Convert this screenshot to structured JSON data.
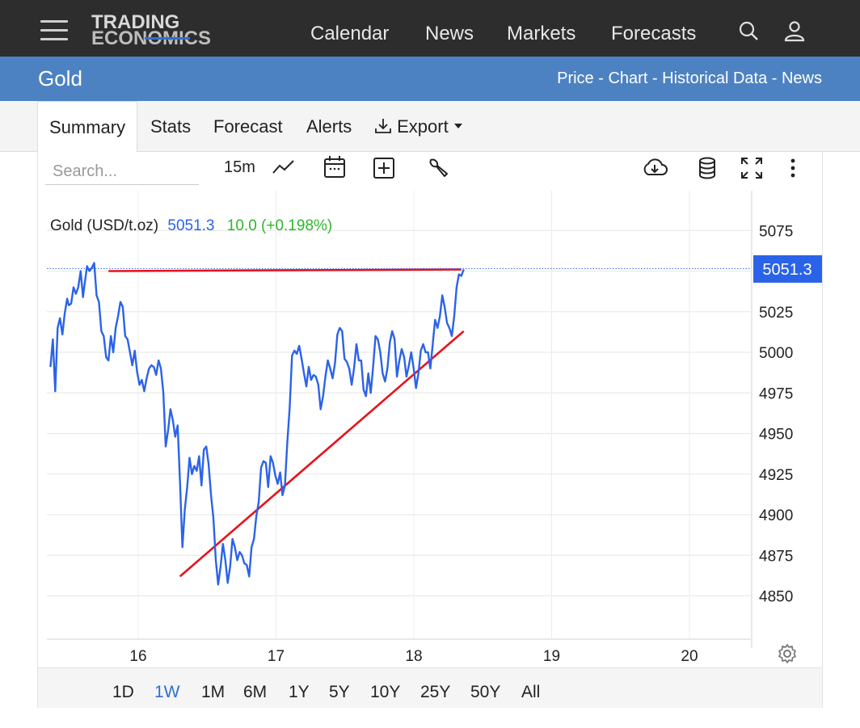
{
  "header": {
    "logo_line1": "TRADING",
    "logo_line2": "ECONOMICS",
    "nav": [
      "Calendar",
      "News",
      "Markets",
      "Forecasts"
    ],
    "icons": [
      "menu-icon",
      "search-icon",
      "user-icon"
    ]
  },
  "subheader": {
    "title": "Gold",
    "links": [
      "Price",
      "Chart",
      "Historical Data",
      "News"
    ],
    "separator": " - "
  },
  "tabs": {
    "summary": "Summary",
    "stats": "Stats",
    "forecast": "Forecast",
    "alerts": "Alerts",
    "export": "Export",
    "active": "Summary"
  },
  "toolbar": {
    "search_placeholder": "Search...",
    "interval": "15m",
    "icons": [
      "line-chart-icon",
      "calendar-icon",
      "add-box-icon",
      "wrench-icon",
      "cloud-download-icon",
      "database-icon",
      "fullscreen-icon",
      "more-vert-icon",
      "gear-icon"
    ]
  },
  "ranges": {
    "items": [
      "1D",
      "1W",
      "1M",
      "6M",
      "1Y",
      "5Y",
      "10Y",
      "25Y",
      "50Y",
      "All"
    ],
    "active": "1W"
  },
  "colors": {
    "line": "#2b63e8",
    "trend": "#e8111b",
    "badge": "#2b63e8",
    "change": "#2fb52a",
    "price": "#2b63e8"
  },
  "chart_data": {
    "type": "line",
    "legend": {
      "name": "Gold (USD/t.oz)",
      "price": "5051.3",
      "change": "10.0 (+0.198%)"
    },
    "last_value_label": "5051.3",
    "last_value": 5051.3,
    "ylim": [
      4825,
      5100
    ],
    "y_ticks": [
      4850,
      4875,
      4900,
      4925,
      4950,
      4975,
      5000,
      5025,
      5075
    ],
    "y_tick_labels": [
      "4850",
      "4875",
      "4900",
      "4925",
      "4950",
      "4975",
      "5000",
      "5025",
      "5075"
    ],
    "x_range": [
      15.3633,
      20.4286
    ],
    "x_ticks": [
      16,
      17,
      18,
      19,
      20
    ],
    "x_tick_labels": [
      "16",
      "17",
      "18",
      "19",
      "20"
    ],
    "grid": true,
    "series": [
      {
        "values": [
          [
            15.3633,
            4991
          ],
          [
            15.3806,
            5008
          ],
          [
            15.3979,
            4976
          ],
          [
            15.4152,
            5015
          ],
          [
            15.4325,
            5021
          ],
          [
            15.4498,
            5011
          ],
          [
            15.4671,
            5024
          ],
          [
            15.4844,
            5033
          ],
          [
            15.4959,
            5029
          ],
          [
            15.5132,
            5030
          ],
          [
            15.5305,
            5040
          ],
          [
            15.5478,
            5036
          ],
          [
            15.5651,
            5040
          ],
          [
            15.5824,
            5050
          ],
          [
            15.5997,
            5034
          ],
          [
            15.6113,
            5042
          ],
          [
            15.6286,
            5053
          ],
          [
            15.6459,
            5050
          ],
          [
            15.6632,
            5052
          ],
          [
            15.6805,
            5055
          ],
          [
            15.6978,
            5035
          ],
          [
            15.7151,
            5031
          ],
          [
            15.7324,
            5013
          ],
          [
            15.7497,
            5010
          ],
          [
            15.767,
            4997
          ],
          [
            15.7843,
            4995
          ],
          [
            15.8016,
            5010
          ],
          [
            15.8189,
            5000
          ],
          [
            15.8362,
            5015
          ],
          [
            15.8535,
            5022
          ],
          [
            15.8708,
            5031
          ],
          [
            15.8881,
            5028
          ],
          [
            15.9054,
            5010
          ],
          [
            15.9227,
            5008
          ],
          [
            15.94,
            5000
          ],
          [
            15.9573,
            4992
          ],
          [
            15.9746,
            5001
          ],
          [
            15.9919,
            4988
          ],
          [
            16.0092,
            4980
          ],
          [
            16.0265,
            4983
          ],
          [
            16.0438,
            4976
          ],
          [
            16.0611,
            4984
          ],
          [
            16.0784,
            4990
          ],
          [
            16.0957,
            4992
          ],
          [
            16.113,
            4991
          ],
          [
            16.1303,
            4986
          ],
          [
            16.1476,
            4995
          ],
          [
            16.1649,
            4990
          ],
          [
            16.1822,
            4975
          ],
          [
            16.1995,
            4942
          ],
          [
            16.2168,
            4952
          ],
          [
            16.2341,
            4965
          ],
          [
            16.2514,
            4958
          ],
          [
            16.2687,
            4948
          ],
          [
            16.286,
            4955
          ],
          [
            16.3033,
            4920
          ],
          [
            16.3206,
            4880
          ],
          [
            16.3379,
            4903
          ],
          [
            16.3552,
            4917
          ],
          [
            16.3725,
            4935
          ],
          [
            16.3898,
            4925
          ],
          [
            16.4071,
            4930
          ],
          [
            16.4244,
            4927
          ],
          [
            16.4417,
            4936
          ],
          [
            16.459,
            4918
          ],
          [
            16.4763,
            4940
          ],
          [
            16.4936,
            4942
          ],
          [
            16.5109,
            4931
          ],
          [
            16.5282,
            4912
          ],
          [
            16.5455,
            4898
          ],
          [
            16.5628,
            4872
          ],
          [
            16.5801,
            4857
          ],
          [
            16.5974,
            4868
          ],
          [
            16.6147,
            4882
          ],
          [
            16.632,
            4872
          ],
          [
            16.6493,
            4858
          ],
          [
            16.6666,
            4868
          ],
          [
            16.6839,
            4885
          ],
          [
            16.7012,
            4880
          ],
          [
            16.7185,
            4872
          ],
          [
            16.7358,
            4877
          ],
          [
            16.7531,
            4875
          ],
          [
            16.7704,
            4870
          ],
          [
            16.7877,
            4869
          ],
          [
            16.805,
            4862
          ],
          [
            16.8223,
            4880
          ],
          [
            16.8396,
            4885
          ],
          [
            16.8569,
            4899
          ],
          [
            16.8742,
            4908
          ],
          [
            16.8915,
            4929
          ],
          [
            16.9088,
            4933
          ],
          [
            16.9261,
            4932
          ],
          [
            16.9434,
            4917
          ],
          [
            16.9607,
            4936
          ],
          [
            16.978,
            4932
          ],
          [
            16.9953,
            4924
          ],
          [
            17.0126,
            4919
          ],
          [
            17.0299,
            4926
          ],
          [
            17.0472,
            4912
          ],
          [
            17.0645,
            4918
          ],
          [
            17.0818,
            4944
          ],
          [
            17.0991,
            4966
          ],
          [
            17.1164,
            4998
          ],
          [
            17.1337,
            5001
          ],
          [
            17.151,
            4999
          ],
          [
            17.1683,
            5004
          ],
          [
            17.1856,
            4996
          ],
          [
            17.2029,
            4987
          ],
          [
            17.2202,
            4979
          ],
          [
            17.2375,
            4991
          ],
          [
            17.2548,
            4983
          ],
          [
            17.2721,
            4986
          ],
          [
            17.2894,
            4985
          ],
          [
            17.3067,
            4980
          ],
          [
            17.324,
            4965
          ],
          [
            17.3413,
            4973
          ],
          [
            17.3586,
            4985
          ],
          [
            17.3759,
            4995
          ],
          [
            17.3932,
            4990
          ],
          [
            17.4105,
            4984
          ],
          [
            17.4278,
            4993
          ],
          [
            17.4451,
            5011
          ],
          [
            17.4624,
            5015
          ],
          [
            17.4797,
            5013
          ],
          [
            17.497,
            4996
          ],
          [
            17.5143,
            4994
          ],
          [
            17.5316,
            4990
          ],
          [
            17.5489,
            4980
          ],
          [
            17.5662,
            4990
          ],
          [
            17.5835,
            5005
          ],
          [
            17.6008,
            4995
          ],
          [
            17.6181,
            4995
          ],
          [
            17.6354,
            4977
          ],
          [
            17.6527,
            4973
          ],
          [
            17.67,
            4987
          ],
          [
            17.6873,
            4975
          ],
          [
            17.7046,
            4991
          ],
          [
            17.7219,
            5010
          ],
          [
            17.7392,
            5008
          ],
          [
            17.7565,
            5000
          ],
          [
            17.7738,
            4987
          ],
          [
            17.7911,
            4982
          ],
          [
            17.8084,
            4990
          ],
          [
            17.8257,
            5006
          ],
          [
            17.843,
            5013
          ],
          [
            17.8603,
            5008
          ],
          [
            17.8776,
            4985
          ],
          [
            17.8949,
            4995
          ],
          [
            17.9122,
            5002
          ],
          [
            17.9295,
            4997
          ],
          [
            17.9468,
            4985
          ],
          [
            17.9641,
            4992
          ],
          [
            17.9814,
            5000
          ],
          [
            17.9987,
            4990
          ],
          [
            18.016,
            4978
          ],
          [
            18.0333,
            4987
          ],
          [
            18.0506,
            5001
          ],
          [
            18.0679,
            5005
          ],
          [
            18.0852,
            5000
          ],
          [
            18.1025,
            5000
          ],
          [
            18.1198,
            4990
          ],
          [
            18.1371,
            5005
          ],
          [
            18.1544,
            5020
          ],
          [
            18.1717,
            5015
          ],
          [
            18.189,
            5022
          ],
          [
            18.2063,
            5035
          ],
          [
            18.2236,
            5028
          ],
          [
            18.2409,
            5018
          ],
          [
            18.2582,
            5015
          ],
          [
            18.2755,
            5010
          ],
          [
            18.2928,
            5022
          ],
          [
            18.3101,
            5040
          ],
          [
            18.3274,
            5048
          ],
          [
            18.3447,
            5047
          ],
          [
            18.362,
            5051
          ]
        ]
      }
    ],
    "trendlines": [
      {
        "from": [
          15.7843,
          5050
        ],
        "to": [
          18.3447,
          5051
        ]
      },
      {
        "from": [
          16.3033,
          4862
        ],
        "to": [
          18.362,
          5013
        ]
      }
    ]
  }
}
